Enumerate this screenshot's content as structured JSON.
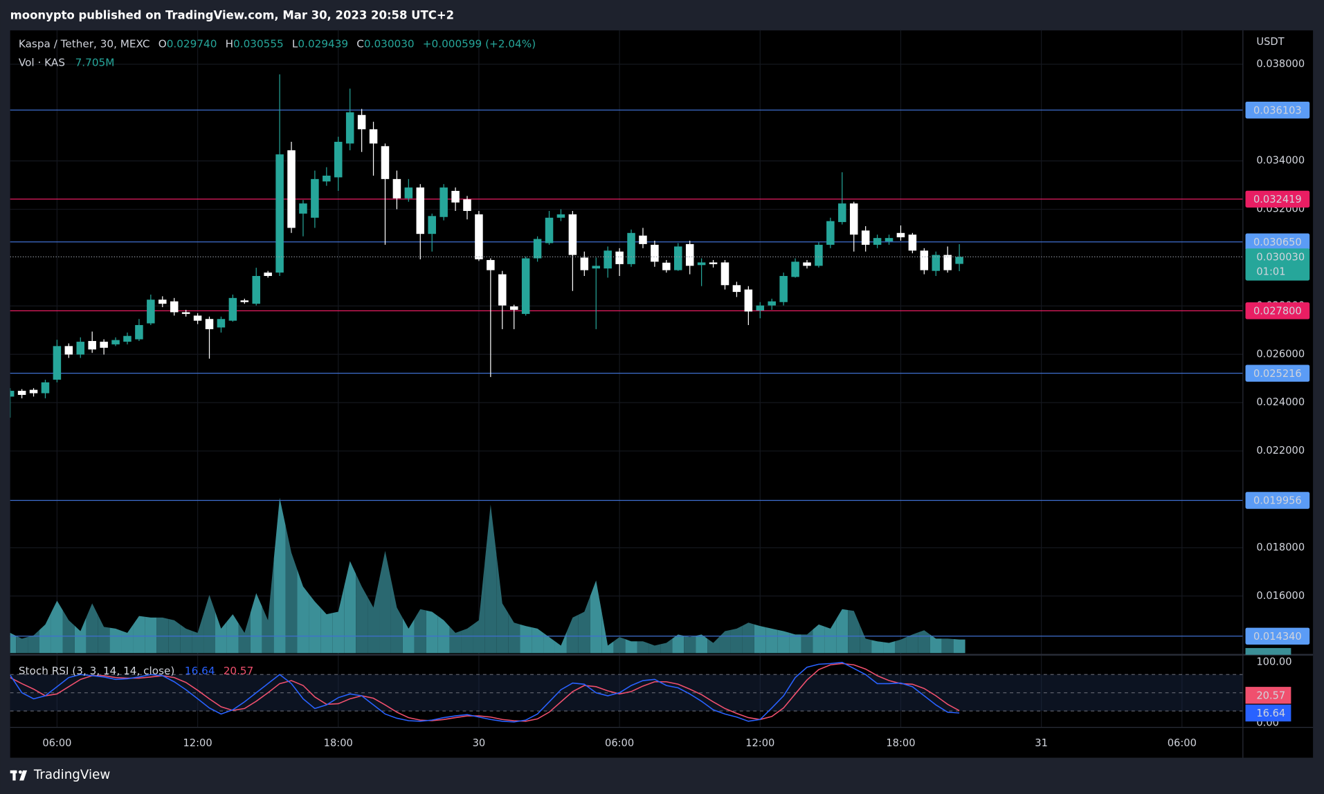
{
  "header": {
    "title": "moonypto published on TradingView.com, Mar 30, 2023 20:58 UTC+2"
  },
  "footer": {
    "brand": "TradingView"
  },
  "chart_data": {
    "type": "candlestick",
    "symbol": "Kaspa / Tether, 30, MEXC",
    "legend": {
      "o": "O",
      "o_value": "0.029740",
      "h": "H",
      "h_value": "0.030555",
      "l": "L",
      "l_value": "0.029439",
      "c": "C",
      "c_value": "0.030030",
      "change": "+0.000599 (+2.04%)"
    },
    "currency": "USDT",
    "up_color": "#26a69a",
    "down_color": "#ffffff",
    "x": [
      4,
      4.5,
      5,
      5.5,
      6,
      6.5,
      7,
      7.5,
      8,
      8.5,
      9,
      9.5,
      10,
      10.5,
      11,
      11.5,
      12,
      12.5,
      13,
      13.5,
      14,
      14.5,
      15,
      15.5,
      16,
      16.5,
      17,
      17.5,
      18,
      18.5,
      19,
      19.5,
      20,
      20.5,
      21,
      21.5,
      22,
      22.5,
      23,
      23.5,
      24,
      24.5,
      25,
      25.5,
      26,
      26.5,
      27,
      27.5,
      28,
      28.5,
      29,
      29.5,
      30,
      30.5,
      31,
      31.5,
      32,
      32.5,
      33,
      33.5,
      34,
      34.5,
      35,
      35.5,
      36,
      36.5,
      37,
      37.5,
      38,
      38.5,
      39,
      39.5,
      40,
      40.5,
      41,
      41.5,
      42,
      42.5,
      43,
      43.5,
      44,
      44.5
    ],
    "open": [
      0.02425,
      0.02449,
      0.02453,
      0.02439,
      0.02495,
      0.02634,
      0.02599,
      0.02655,
      0.02652,
      0.02641,
      0.02652,
      0.02662,
      0.02728,
      0.02826,
      0.02819,
      0.02774,
      0.0276,
      0.02746,
      0.02711,
      0.02739,
      0.02823,
      0.02809,
      0.02938,
      0.02938,
      0.03444,
      0.03182,
      0.03165,
      0.03315,
      0.03332,
      0.03472,
      0.0359,
      0.03531,
      0.03461,
      0.03325,
      0.03245,
      0.0329,
      0.03098,
      0.03168,
      0.03276,
      0.03241,
      0.03179,
      0.0299,
      0.02931,
      0.02798,
      0.02767,
      0.02997,
      0.0306,
      0.03165,
      0.03179,
      0.03,
      0.02955,
      0.02955,
      0.03025,
      0.02973,
      0.03091,
      0.03053,
      0.02979,
      0.02948,
      0.03056,
      0.02969,
      0.0298,
      0.0298,
      0.02886,
      0.02868,
      0.02781,
      0.02802,
      0.02816,
      0.0292,
      0.0298,
      0.02966,
      0.03053,
      0.03147,
      0.03224,
      0.03112,
      0.03053,
      0.03067,
      0.03102,
      0.03095,
      0.03029,
      0.02945,
      0.03011,
      0.02974
    ],
    "high": [
      0.0246,
      0.02456,
      0.0246,
      0.02495,
      0.0266,
      0.02645,
      0.0267,
      0.02694,
      0.02662,
      0.0267,
      0.0269,
      0.02746,
      0.02847,
      0.0284,
      0.02833,
      0.02784,
      0.0277,
      0.02756,
      0.02756,
      0.02847,
      0.0283,
      0.02958,
      0.02945,
      0.03758,
      0.03479,
      0.03238,
      0.0336,
      0.03374,
      0.035,
      0.03699,
      0.03615,
      0.03562,
      0.03472,
      0.0336,
      0.03325,
      0.03304,
      0.03182,
      0.03304,
      0.0329,
      0.03255,
      0.03193,
      0.02997,
      0.02945,
      0.02805,
      0.03004,
      0.03088,
      0.03193,
      0.032,
      0.03193,
      0.03025,
      0.03,
      0.03046,
      0.03039,
      0.03116,
      0.03123,
      0.0307,
      0.0299,
      0.0306,
      0.0307,
      0.02997,
      0.0299,
      0.0299,
      0.029,
      0.02882,
      0.02816,
      0.0283,
      0.02938,
      0.02997,
      0.0299,
      0.03063,
      0.03165,
      0.03353,
      0.03231,
      0.0313,
      0.03095,
      0.03095,
      0.03133,
      0.03102,
      0.03039,
      0.03025,
      0.03046,
      0.030555
    ],
    "low": [
      0.02338,
      0.02418,
      0.02425,
      0.02418,
      0.02484,
      0.02585,
      0.02585,
      0.02606,
      0.02599,
      0.02634,
      0.02641,
      0.02655,
      0.02721,
      0.02795,
      0.0276,
      0.02756,
      0.02725,
      0.02582,
      0.0269,
      0.02735,
      0.02809,
      0.02802,
      0.02917,
      0.02924,
      0.03102,
      0.03088,
      0.03123,
      0.03297,
      0.03276,
      0.03444,
      0.03437,
      0.03339,
      0.03053,
      0.032,
      0.03231,
      0.02993,
      0.03025,
      0.03154,
      0.03193,
      0.03158,
      0.02986,
      0.02506,
      0.02704,
      0.02704,
      0.0276,
      0.02983,
      0.03053,
      0.03151,
      0.02862,
      0.02924,
      0.02704,
      0.02917,
      0.02924,
      0.02962,
      0.03039,
      0.02962,
      0.02938,
      0.02945,
      0.02931,
      0.02882,
      0.02959,
      0.02868,
      0.02837,
      0.02721,
      0.02749,
      0.02784,
      0.02802,
      0.02917,
      0.02955,
      0.02959,
      0.03039,
      0.03137,
      0.03025,
      0.03025,
      0.03039,
      0.03053,
      0.0307,
      0.03018,
      0.02931,
      0.02924,
      0.02938,
      0.029439
    ],
    "close": [
      0.02449,
      0.02432,
      0.02439,
      0.02484,
      0.02634,
      0.02599,
      0.02652,
      0.0262,
      0.02627,
      0.02659,
      0.02676,
      0.02721,
      0.02826,
      0.02809,
      0.02774,
      0.02767,
      0.02739,
      0.02704,
      0.02746,
      0.02833,
      0.02816,
      0.02924,
      0.02924,
      0.03427,
      0.03123,
      0.03224,
      0.03325,
      0.03339,
      0.03479,
      0.03601,
      0.03531,
      0.03472,
      0.03325,
      0.03245,
      0.0329,
      0.03098,
      0.03172,
      0.0329,
      0.03228,
      0.03193,
      0.02993,
      0.02948,
      0.02802,
      0.02784,
      0.02997,
      0.03077,
      0.03165,
      0.03179,
      0.03011,
      0.02948,
      0.02966,
      0.03029,
      0.02973,
      0.03102,
      0.03056,
      0.02983,
      0.02948,
      0.03046,
      0.02966,
      0.0298,
      0.02973,
      0.02886,
      0.02858,
      0.02777,
      0.02802,
      0.02819,
      0.02924,
      0.02983,
      0.02966,
      0.03053,
      0.03151,
      0.03224,
      0.03095,
      0.03053,
      0.03081,
      0.03081,
      0.03084,
      0.03029,
      0.02948,
      0.03011,
      0.02948,
      0.03003
    ],
    "xlim": [
      4,
      56.6
    ],
    "xticks": [
      {
        "value": 6,
        "label": "06:00"
      },
      {
        "value": 12,
        "label": "12:00"
      },
      {
        "value": 18,
        "label": "18:00"
      },
      {
        "value": 24,
        "label": "30"
      },
      {
        "value": 30,
        "label": "06:00"
      },
      {
        "value": 36,
        "label": "12:00"
      },
      {
        "value": 42,
        "label": "18:00"
      },
      {
        "value": 48,
        "label": "31"
      },
      {
        "value": 54,
        "label": "06:00"
      }
    ],
    "ylim": [
      0.01364,
      0.03926
    ],
    "yticks": [
      {
        "value": 0.038,
        "label": "0.038000"
      },
      {
        "value": 0.034,
        "label": "0.034000"
      },
      {
        "value": 0.032,
        "label": "0.032000"
      },
      {
        "value": 0.028,
        "label": "0.028000"
      },
      {
        "value": 0.026,
        "label": "0.026000"
      },
      {
        "value": 0.024,
        "label": "0.024000"
      },
      {
        "value": 0.022,
        "label": "0.022000"
      },
      {
        "value": 0.018,
        "label": "0.018000"
      },
      {
        "value": 0.016,
        "label": "0.016000"
      }
    ],
    "grid": true,
    "levels": [
      {
        "value": 0.036103,
        "label": "0.036103",
        "color": "#5b9cf6",
        "line_color": "#3f6fd1",
        "text_color": "#000000"
      },
      {
        "value": 0.032419,
        "label": "0.032419",
        "color": "#e91e63",
        "line_color": "#e91e63",
        "text_color": "#ffffff"
      },
      {
        "value": 0.03065,
        "label": "0.030650",
        "color": "#5b9cf6",
        "line_color": "#3f6fd1",
        "text_color": "#000000"
      },
      {
        "value": 0.0278,
        "label": "0.027800",
        "color": "#e91e63",
        "line_color": "#e91e63",
        "text_color": "#ffffff"
      },
      {
        "value": 0.025216,
        "label": "0.025216",
        "color": "#5b9cf6",
        "line_color": "#3f6fd1",
        "text_color": "#000000"
      },
      {
        "value": 0.019956,
        "label": "0.019956",
        "color": "#5b9cf6",
        "line_color": "#3f6fd1",
        "text_color": "#000000"
      },
      {
        "value": 0.01434,
        "label": "0.014340",
        "color": "#5b9cf6",
        "line_color": "#3f6fd1",
        "text_color": "#000000"
      }
    ],
    "last_price_label": "0.030030",
    "countdown": "01:01",
    "last_price_color": "#26a69a",
    "volume": {
      "title": "Vol · KAS",
      "last_label": "7.705M",
      "up_color": "#3b8f97",
      "down_color": "#2a6870",
      "values": [
        11.5,
        8.2,
        10.1,
        16.3,
        29.8,
        18.7,
        12.5,
        28.3,
        14.9,
        13.9,
        11.5,
        21.1,
        20.2,
        20.2,
        18.7,
        13.9,
        11.5,
        33.1,
        13.9,
        22.1,
        11.5,
        34.1,
        18.7,
        88.3,
        57.1,
        37.9,
        29.3,
        22.1,
        23.5,
        52.3,
        37.9,
        25.9,
        58.1,
        25.9,
        13.9,
        25.0,
        23.5,
        18.7,
        11.5,
        13.9,
        18.7,
        84.5,
        28.3,
        17.3,
        15.4,
        13.9,
        9.1,
        4.3,
        20.2,
        23.5,
        41.3,
        4.3,
        9.1,
        6.7,
        6.7,
        4.3,
        5.8,
        10.6,
        9.1,
        10.6,
        5.8,
        12.5,
        13.9,
        17.3,
        15.4,
        13.9,
        12.5,
        10.6,
        10.6,
        16.3,
        13.9,
        25.0,
        24.0,
        8.2,
        6.7,
        5.8,
        7.7,
        10.6,
        13.0,
        8.2,
        8.2,
        7.705
      ]
    },
    "stoch": {
      "title": "Stoch RSI (3, 3, 14, 14, close)",
      "ylim": [
        0,
        100
      ],
      "yticks": [
        {
          "value": 100,
          "label": "100.00"
        },
        {
          "value": 0,
          "label": "0.00"
        }
      ],
      "bands": [
        80,
        50,
        20
      ],
      "band_color": "#1a2a4a",
      "k": {
        "color": "#2962ff",
        "values": [
          79,
          50,
          40,
          45,
          60,
          75,
          80,
          78,
          76,
          72,
          73,
          76,
          80,
          78,
          68,
          55,
          40,
          25,
          15,
          22,
          35,
          50,
          65,
          80,
          65,
          40,
          24,
          30,
          42,
          48,
          45,
          30,
          15,
          8,
          4,
          3,
          5,
          9,
          12,
          14,
          10,
          6,
          3,
          2,
          5,
          15,
          35,
          55,
          66,
          64,
          50,
          45,
          50,
          62,
          70,
          72,
          62,
          58,
          48,
          36,
          22,
          15,
          10,
          3,
          6,
          25,
          45,
          75,
          92,
          97,
          98,
          100,
          90,
          80,
          65,
          65,
          66,
          60,
          45,
          30,
          18,
          16.64
        ]
      },
      "d": {
        "color": "#f0506e",
        "values": [
          75,
          65,
          56,
          45,
          48,
          60,
          72,
          78,
          78,
          75,
          74,
          74,
          76,
          78,
          75,
          67,
          54,
          40,
          27,
          21,
          24,
          36,
          50,
          65,
          70,
          62,
          43,
          31,
          32,
          40,
          45,
          41,
          30,
          18,
          9,
          5,
          4,
          6,
          9,
          12,
          12,
          10,
          6,
          4,
          3,
          7,
          18,
          35,
          52,
          62,
          60,
          53,
          48,
          52,
          61,
          68,
          68,
          64,
          56,
          47,
          35,
          24,
          16,
          9,
          6,
          11,
          25,
          48,
          71,
          88,
          96,
          98,
          96,
          89,
          78,
          70,
          65,
          64,
          57,
          45,
          31,
          20.57
        ]
      }
    }
  }
}
